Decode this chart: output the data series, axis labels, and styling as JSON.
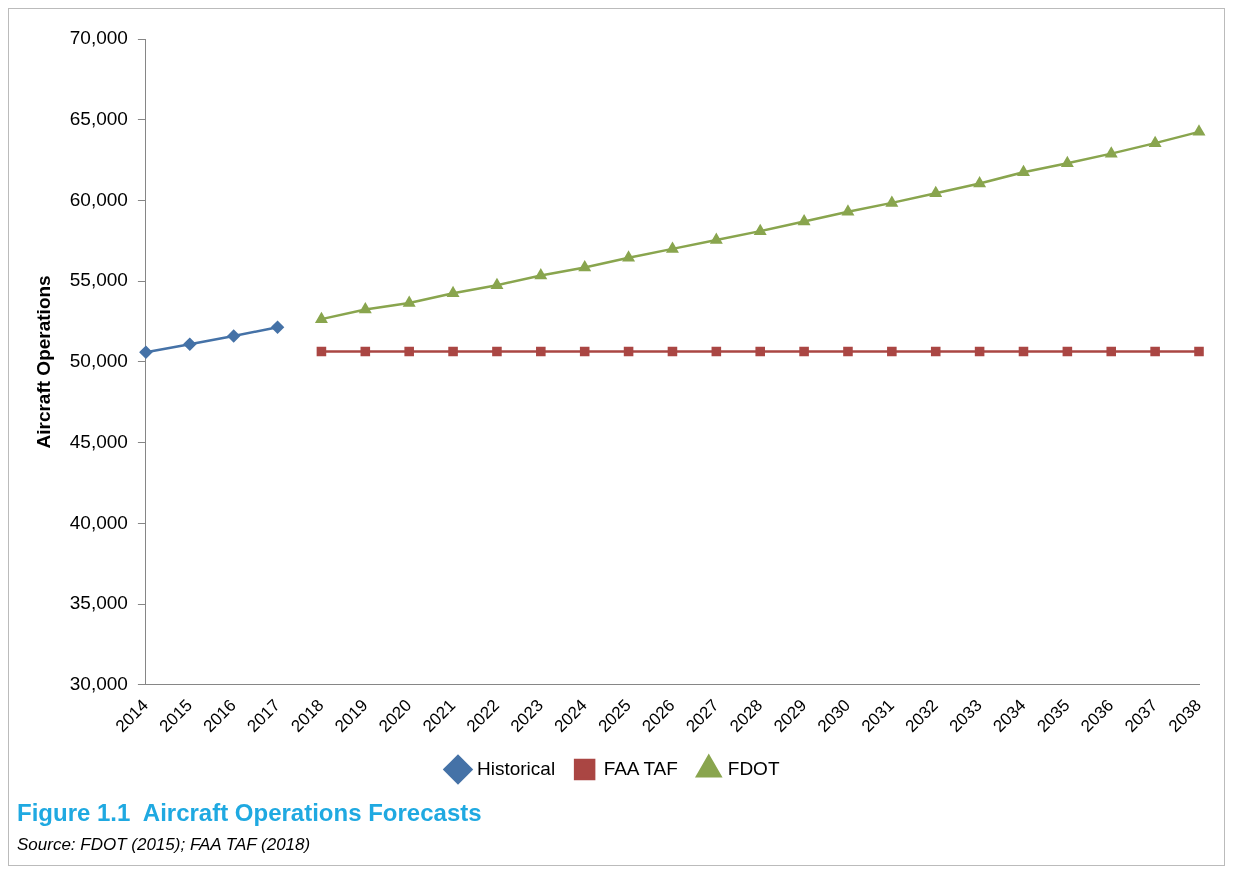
{
  "chart_data": {
    "type": "line",
    "title": "Figure 1.1  Aircraft Operations Forecasts",
    "ylabel": "Aircraft Operations",
    "annotations": [
      "Source: FDOT (2015); FAA TAF (2018)"
    ],
    "categories": [
      "2014",
      "2015",
      "2016",
      "2017",
      "2018",
      "2019",
      "2020",
      "2021",
      "2022",
      "2023",
      "2024",
      "2025",
      "2026",
      "2027",
      "2028",
      "2029",
      "2030",
      "2031",
      "2032",
      "2033",
      "2034",
      "2035",
      "2036",
      "2037",
      "2038"
    ],
    "series": [
      {
        "name": "Historical",
        "color": "#4572a7",
        "marker": "diamond",
        "values": [
          50600,
          51100,
          51600,
          52150,
          null,
          null,
          null,
          null,
          null,
          null,
          null,
          null,
          null,
          null,
          null,
          null,
          null,
          null,
          null,
          null,
          null,
          null,
          null,
          null,
          null
        ]
      },
      {
        "name": "FAA TAF",
        "color": "#aa4643",
        "marker": "square",
        "values": [
          null,
          null,
          null,
          null,
          50650,
          50650,
          50650,
          50650,
          50650,
          50650,
          50650,
          50650,
          50650,
          50650,
          50650,
          50650,
          50650,
          50650,
          50650,
          50650,
          50650,
          50650,
          50650,
          50650,
          50650
        ]
      },
      {
        "name": "FDOT",
        "color": "#89a54e",
        "marker": "triangle",
        "values": [
          null,
          null,
          null,
          null,
          52650,
          53250,
          53650,
          54250,
          54750,
          55350,
          55850,
          56450,
          57000,
          57550,
          58100,
          58700,
          59300,
          59850,
          60450,
          61050,
          61750,
          62300,
          62900,
          63550,
          64250
        ]
      }
    ],
    "ylim": [
      30000,
      70000
    ],
    "yticks": [
      {
        "value": 30000,
        "label": "30,000"
      },
      {
        "value": 35000,
        "label": "35,000"
      },
      {
        "value": 40000,
        "label": "40,000"
      },
      {
        "value": 45000,
        "label": "45,000"
      },
      {
        "value": 50000,
        "label": "50,000"
      },
      {
        "value": 55000,
        "label": "55,000"
      },
      {
        "value": 60000,
        "label": "60,000"
      },
      {
        "value": 65000,
        "label": "65,000"
      },
      {
        "value": 70000,
        "label": "70,000"
      }
    ],
    "grid": false,
    "legend": "bottom",
    "line_style": "solid"
  }
}
